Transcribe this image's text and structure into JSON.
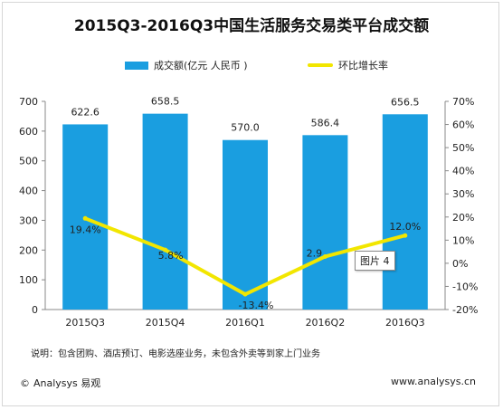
{
  "colors": {
    "bar": "#1a9ee0",
    "line": "#f2e600",
    "axis": "#888888",
    "text": "#222222"
  },
  "chart_data": {
    "type": "bar",
    "title": "2015Q3-2016Q3中国生活服务交易类平台成交额",
    "categories": [
      "2015Q3",
      "2015Q4",
      "2016Q1",
      "2016Q2",
      "2016Q3"
    ],
    "series": [
      {
        "name": "成交额(亿元 人民币 )",
        "type": "bar",
        "axis": "left",
        "values": [
          622.6,
          658.5,
          570.0,
          586.4,
          656.5
        ],
        "labels": [
          "622.6",
          "658.5",
          "570.0",
          "586.4",
          "656.5"
        ]
      },
      {
        "name": "环比增长率",
        "type": "line",
        "axis": "right",
        "values": [
          19.4,
          5.8,
          -13.4,
          2.9,
          12.0
        ],
        "labels": [
          "19.4%",
          "5.8%",
          "-13.4%",
          "2.9",
          "12.0%"
        ]
      }
    ],
    "y_left": {
      "min": 0,
      "max": 700,
      "ticks": [
        "0",
        "100",
        "200",
        "300",
        "400",
        "500",
        "600",
        "700"
      ]
    },
    "y_right": {
      "min": -20,
      "max": 70,
      "ticks": [
        "-20%",
        "-10%",
        "0%",
        "10%",
        "20%",
        "30%",
        "40%",
        "50%",
        "60%",
        "70%"
      ]
    },
    "legend_position": "top"
  },
  "tooltip": "图片 4",
  "note": "说明：包含团购、酒店预订、电影选座业务，未包含外卖等到家上门业务",
  "footer": {
    "brand": "Analysys 易观",
    "website": "www.analysys.cn"
  }
}
